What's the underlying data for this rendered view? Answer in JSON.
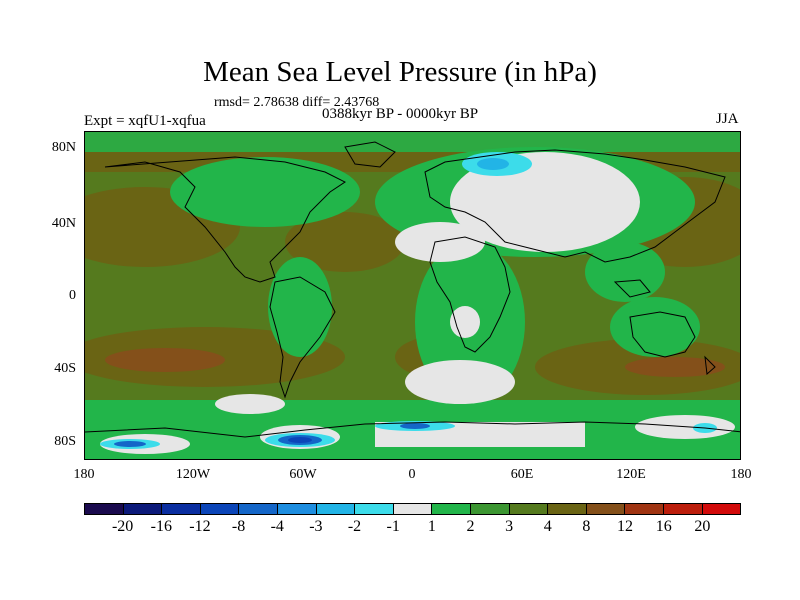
{
  "title": "Mean Sea Level Pressure (in hPa)",
  "stats": "rmsd= 2.78638 diff= 2.43768",
  "experiment": "Expt = xqfU1-xqfua",
  "period": "0388kyr BP - 0000kyr BP",
  "season": "JJA",
  "axes": {
    "y_labels": [
      "80N",
      "40N",
      "0",
      "40S",
      "80S"
    ],
    "x_labels": [
      "180",
      "120W",
      "60W",
      "0",
      "60E",
      "120E",
      "180"
    ]
  },
  "colorbar": {
    "labels": [
      "-20",
      "-16",
      "-12",
      "-8",
      "-4",
      "-3",
      "-2",
      "-1",
      "1",
      "2",
      "3",
      "4",
      "8",
      "12",
      "16",
      "20"
    ],
    "colors": [
      "#1a0a4e",
      "#0c1a7a",
      "#0a2ea0",
      "#0b45b8",
      "#1466c8",
      "#1e8ee0",
      "#22b4e6",
      "#3cdcea",
      "#e6e6e6",
      "#22b54a",
      "#3c9632",
      "#557a1e",
      "#6a6414",
      "#84501a",
      "#a03412",
      "#bc1e0c",
      "#d20a0a"
    ]
  },
  "legend_colors": {
    "olive": "#557a1e",
    "darkgreen": "#3c9632",
    "green": "#22b54a",
    "white": "#e6e6e6",
    "cyan": "#3cdcea",
    "lightblue": "#22b4e6",
    "blue": "#1466c8",
    "darkblue": "#0b45b8",
    "brown": "#6a6414",
    "darkbrown": "#84501a"
  }
}
